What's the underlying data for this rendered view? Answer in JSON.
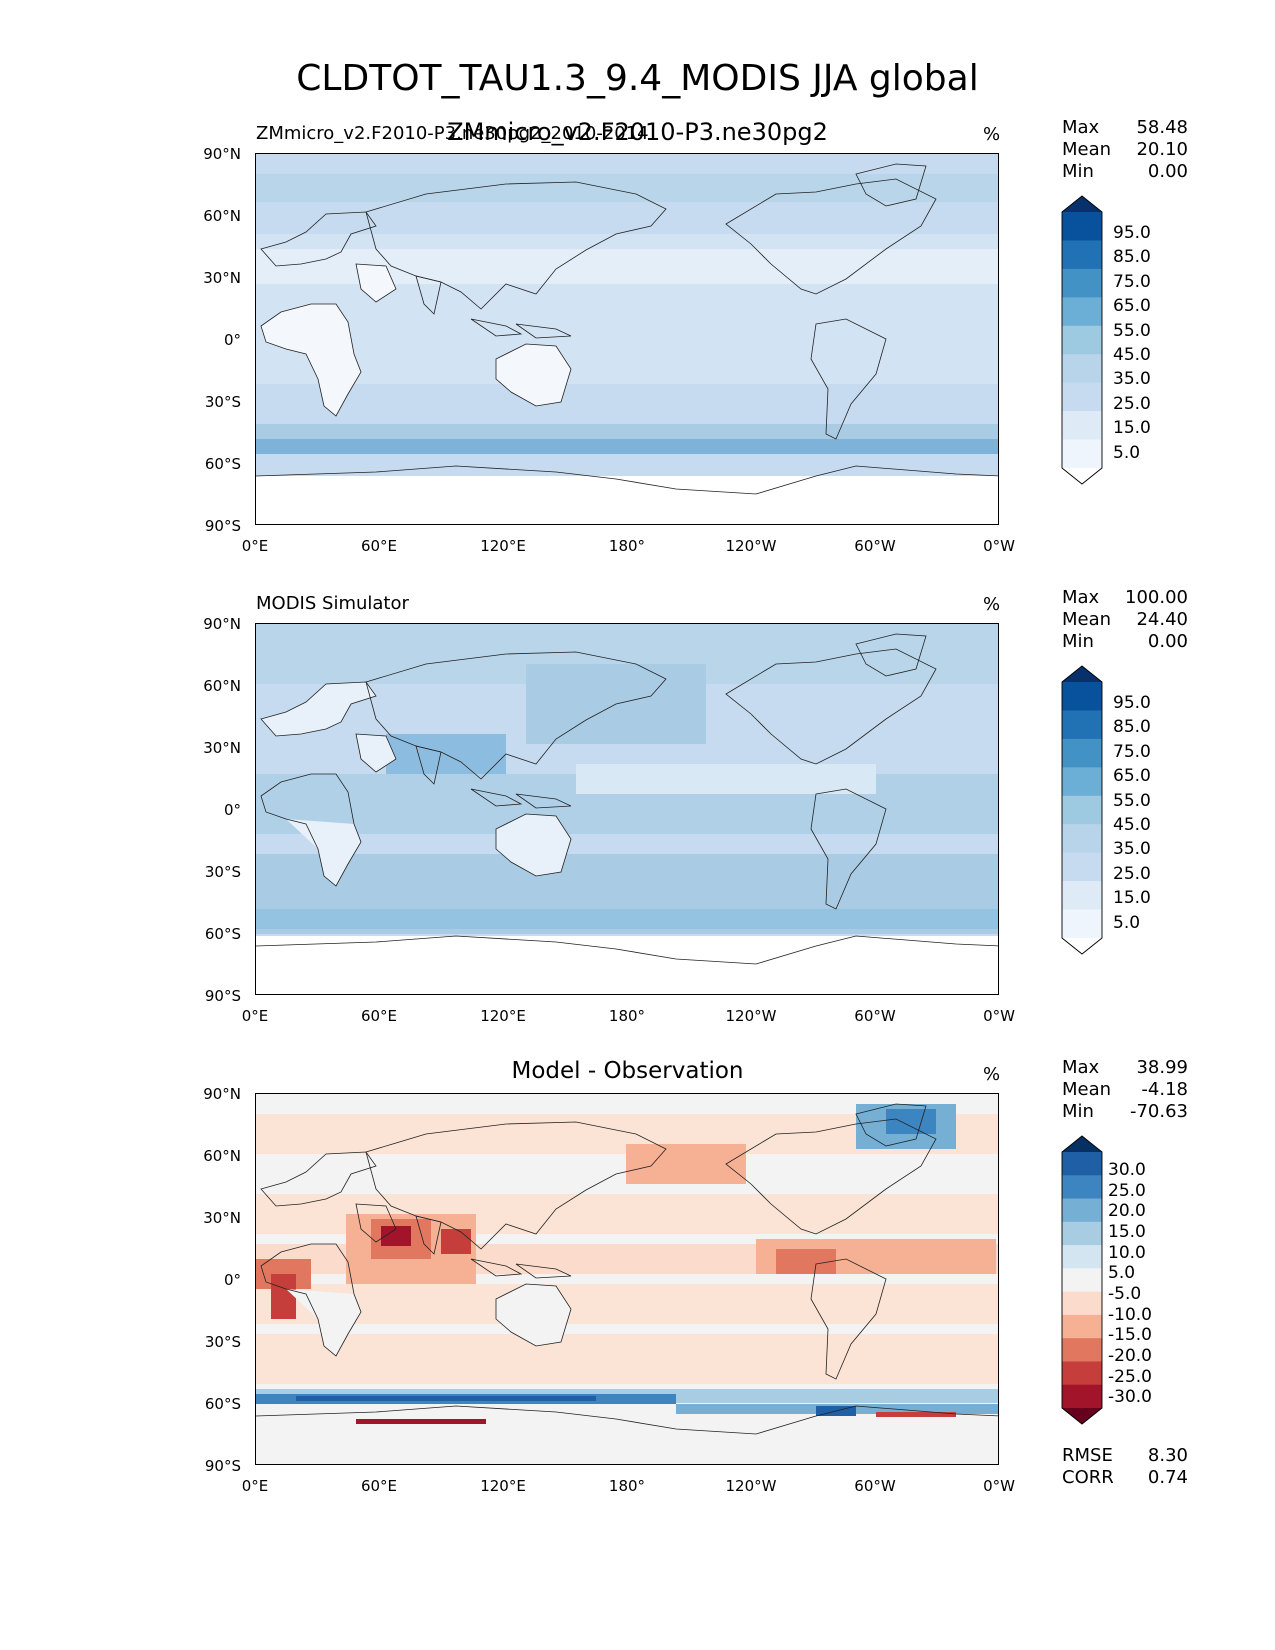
{
  "figure": {
    "title": "CLDTOT_TAU1.3_9.4_MODIS JJA global",
    "overlap_title": "ZMmicro_v2.F2010-P3.ne30pg2"
  },
  "axes": {
    "lat_ticks": [
      "90°N",
      "60°N",
      "30°N",
      "0°",
      "30°S",
      "60°S",
      "90°S"
    ],
    "lon_ticks": [
      "0°E",
      "60°E",
      "120°E",
      "180°",
      "120°W",
      "60°W",
      "0°W"
    ]
  },
  "panels": [
    {
      "left_label": "ZMmicro_v2.F2010-P3.ne30pg2_2010-2014",
      "center_title": "",
      "units": "%",
      "stats": {
        "max_label": "Max",
        "max": "58.48",
        "mean_label": "Mean",
        "mean": "20.10",
        "min_label": "Min",
        "min": "0.00"
      },
      "colorbar": {
        "labels": [
          "95.0",
          "85.0",
          "75.0",
          "65.0",
          "55.0",
          "45.0",
          "35.0",
          "25.0",
          "15.0",
          "5.0"
        ],
        "colors": [
          "#08306b",
          "#08519c",
          "#2171b5",
          "#4292c6",
          "#6baed6",
          "#9ecae1",
          "#b7d4ea",
          "#c6dbef",
          "#deebf7",
          "#eef5fc",
          "#ffffff"
        ]
      }
    },
    {
      "left_label": "MODIS Simulator",
      "center_title": "",
      "units": "%",
      "stats": {
        "max_label": "Max",
        "max": "100.00",
        "mean_label": "Mean",
        "mean": "24.40",
        "min_label": "Min",
        "min": "0.00"
      },
      "colorbar": {
        "labels": [
          "95.0",
          "85.0",
          "75.0",
          "65.0",
          "55.0",
          "45.0",
          "35.0",
          "25.0",
          "15.0",
          "5.0"
        ],
        "colors": [
          "#08306b",
          "#08519c",
          "#2171b5",
          "#4292c6",
          "#6baed6",
          "#9ecae1",
          "#b7d4ea",
          "#c6dbef",
          "#deebf7",
          "#eef5fc",
          "#ffffff"
        ]
      }
    },
    {
      "left_label": "",
      "center_title": "Model - Observation",
      "units": "%",
      "stats": {
        "max_label": "Max",
        "max": "38.99",
        "mean_label": "Mean",
        "mean": "-4.18",
        "min_label": "Min",
        "min": "-70.63"
      },
      "colorbar": {
        "labels": [
          "30.0",
          "25.0",
          "20.0",
          "15.0",
          "10.0",
          "5.0",
          "-5.0",
          "-10.0",
          "-15.0",
          "-20.0",
          "-25.0",
          "-30.0"
        ],
        "colors": [
          "#053061",
          "#1f5fa6",
          "#3d85c0",
          "#76afd4",
          "#a8cde3",
          "#d3e5f0",
          "#f3f3f3",
          "#fbdbcb",
          "#f6b094",
          "#e27760",
          "#c53e3b",
          "#a1142a",
          "#67001f"
        ]
      },
      "metrics": {
        "rmse_label": "RMSE",
        "rmse": "8.30",
        "corr_label": "CORR",
        "corr": "0.74"
      }
    }
  ]
}
